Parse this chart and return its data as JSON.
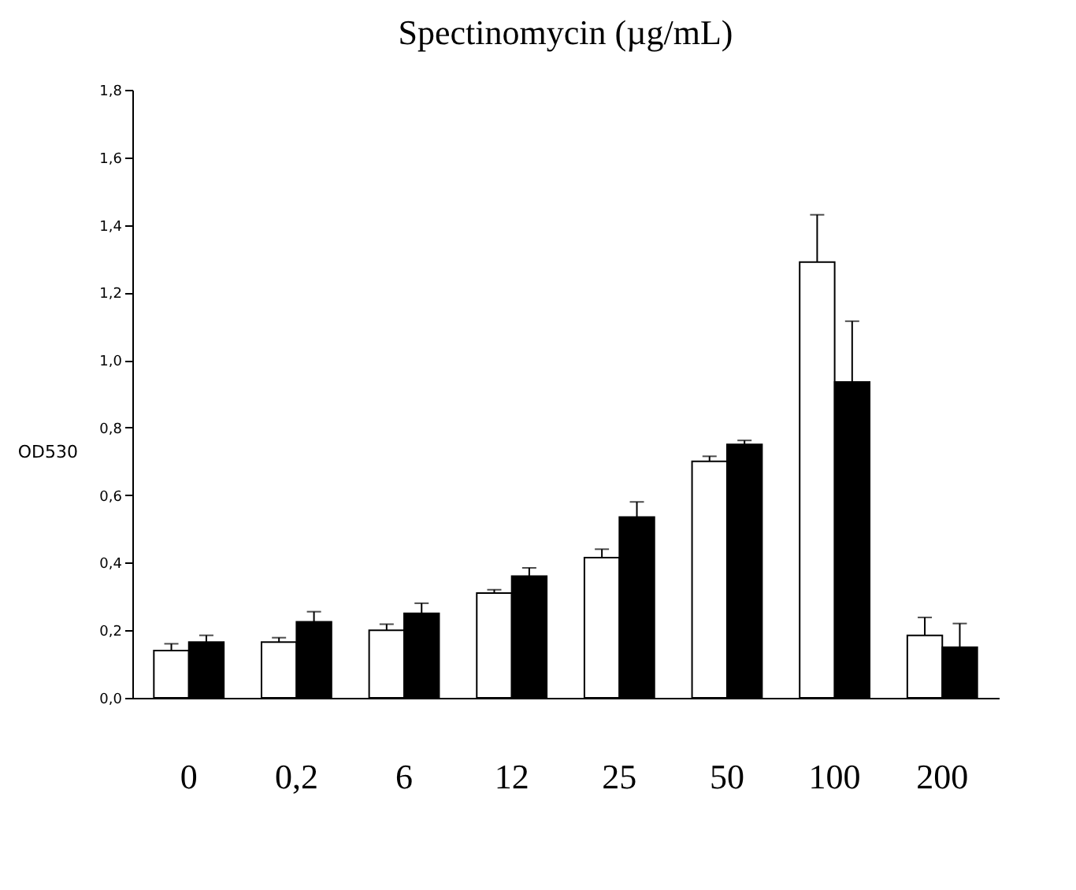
{
  "chart_data": {
    "type": "bar",
    "title": "Spectinomycin (µg/mL)",
    "ylabel": "OD530",
    "categories": [
      "0",
      "0,2",
      "6",
      "12",
      "25",
      "50",
      "100",
      "200"
    ],
    "series": [
      {
        "color": "#ffffff",
        "values": [
          0.14,
          0.165,
          0.2,
          0.31,
          0.415,
          0.7,
          1.29,
          0.185
        ],
        "errors": [
          [
            0.14,
            0.16
          ],
          [
            0.165,
            0.178
          ],
          [
            0.2,
            0.218
          ],
          [
            0.31,
            0.32
          ],
          [
            0.415,
            0.44
          ],
          [
            0.7,
            0.715
          ],
          [
            1.29,
            1.43
          ],
          [
            0.185,
            0.238
          ]
        ]
      },
      {
        "color": "#000000",
        "values": [
          0.165,
          0.225,
          0.25,
          0.36,
          0.535,
          0.75,
          0.935,
          0.15
        ],
        "errors": [
          [
            0.165,
            0.185
          ],
          [
            0.225,
            0.255
          ],
          [
            0.25,
            0.28
          ],
          [
            0.36,
            0.385
          ],
          [
            0.535,
            0.58
          ],
          [
            0.75,
            0.762
          ],
          [
            0.935,
            1.115
          ],
          [
            0.15,
            0.22
          ]
        ]
      }
    ],
    "ylim": [
      0,
      1.8
    ],
    "yticks": [
      {
        "value": 0,
        "label": "0,0"
      },
      {
        "value": 0.2,
        "label": "0,2"
      },
      {
        "value": 0.4,
        "label": "0,4"
      },
      {
        "value": 0.6,
        "label": "0,6"
      },
      {
        "value": 0.8,
        "label": "0,8"
      },
      {
        "value": 1.0,
        "label": "1,0"
      },
      {
        "value": 1.2,
        "label": "1,2"
      },
      {
        "value": 1.4,
        "label": "1,4"
      },
      {
        "value": 1.6,
        "label": "1,6"
      },
      {
        "value": 1.8,
        "label": "1,8"
      }
    ],
    "grid": false,
    "legend": false
  }
}
